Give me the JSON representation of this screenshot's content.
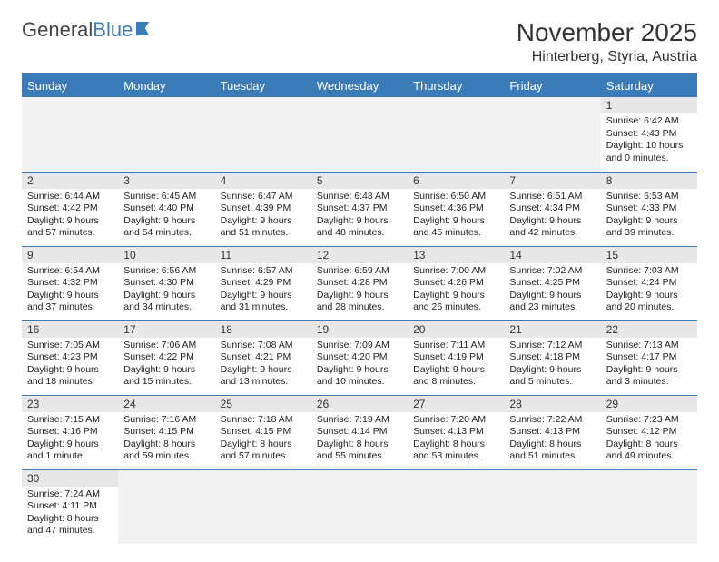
{
  "logo": {
    "part1": "General",
    "part2": "Blue"
  },
  "title": "November 2025",
  "location": "Hinterberg, Styria, Austria",
  "colors": {
    "accent": "#3a7bb8",
    "header_bg": "#3a7bb8",
    "daynum_bg": "#e8e8e8"
  },
  "day_headers": [
    "Sunday",
    "Monday",
    "Tuesday",
    "Wednesday",
    "Thursday",
    "Friday",
    "Saturday"
  ],
  "weeks": [
    [
      null,
      null,
      null,
      null,
      null,
      null,
      {
        "n": "1",
        "sunrise": "Sunrise: 6:42 AM",
        "sunset": "Sunset: 4:43 PM",
        "day1": "Daylight: 10 hours",
        "day2": "and 0 minutes."
      }
    ],
    [
      {
        "n": "2",
        "sunrise": "Sunrise: 6:44 AM",
        "sunset": "Sunset: 4:42 PM",
        "day1": "Daylight: 9 hours",
        "day2": "and 57 minutes."
      },
      {
        "n": "3",
        "sunrise": "Sunrise: 6:45 AM",
        "sunset": "Sunset: 4:40 PM",
        "day1": "Daylight: 9 hours",
        "day2": "and 54 minutes."
      },
      {
        "n": "4",
        "sunrise": "Sunrise: 6:47 AM",
        "sunset": "Sunset: 4:39 PM",
        "day1": "Daylight: 9 hours",
        "day2": "and 51 minutes."
      },
      {
        "n": "5",
        "sunrise": "Sunrise: 6:48 AM",
        "sunset": "Sunset: 4:37 PM",
        "day1": "Daylight: 9 hours",
        "day2": "and 48 minutes."
      },
      {
        "n": "6",
        "sunrise": "Sunrise: 6:50 AM",
        "sunset": "Sunset: 4:36 PM",
        "day1": "Daylight: 9 hours",
        "day2": "and 45 minutes."
      },
      {
        "n": "7",
        "sunrise": "Sunrise: 6:51 AM",
        "sunset": "Sunset: 4:34 PM",
        "day1": "Daylight: 9 hours",
        "day2": "and 42 minutes."
      },
      {
        "n": "8",
        "sunrise": "Sunrise: 6:53 AM",
        "sunset": "Sunset: 4:33 PM",
        "day1": "Daylight: 9 hours",
        "day2": "and 39 minutes."
      }
    ],
    [
      {
        "n": "9",
        "sunrise": "Sunrise: 6:54 AM",
        "sunset": "Sunset: 4:32 PM",
        "day1": "Daylight: 9 hours",
        "day2": "and 37 minutes."
      },
      {
        "n": "10",
        "sunrise": "Sunrise: 6:56 AM",
        "sunset": "Sunset: 4:30 PM",
        "day1": "Daylight: 9 hours",
        "day2": "and 34 minutes."
      },
      {
        "n": "11",
        "sunrise": "Sunrise: 6:57 AM",
        "sunset": "Sunset: 4:29 PM",
        "day1": "Daylight: 9 hours",
        "day2": "and 31 minutes."
      },
      {
        "n": "12",
        "sunrise": "Sunrise: 6:59 AM",
        "sunset": "Sunset: 4:28 PM",
        "day1": "Daylight: 9 hours",
        "day2": "and 28 minutes."
      },
      {
        "n": "13",
        "sunrise": "Sunrise: 7:00 AM",
        "sunset": "Sunset: 4:26 PM",
        "day1": "Daylight: 9 hours",
        "day2": "and 26 minutes."
      },
      {
        "n": "14",
        "sunrise": "Sunrise: 7:02 AM",
        "sunset": "Sunset: 4:25 PM",
        "day1": "Daylight: 9 hours",
        "day2": "and 23 minutes."
      },
      {
        "n": "15",
        "sunrise": "Sunrise: 7:03 AM",
        "sunset": "Sunset: 4:24 PM",
        "day1": "Daylight: 9 hours",
        "day2": "and 20 minutes."
      }
    ],
    [
      {
        "n": "16",
        "sunrise": "Sunrise: 7:05 AM",
        "sunset": "Sunset: 4:23 PM",
        "day1": "Daylight: 9 hours",
        "day2": "and 18 minutes."
      },
      {
        "n": "17",
        "sunrise": "Sunrise: 7:06 AM",
        "sunset": "Sunset: 4:22 PM",
        "day1": "Daylight: 9 hours",
        "day2": "and 15 minutes."
      },
      {
        "n": "18",
        "sunrise": "Sunrise: 7:08 AM",
        "sunset": "Sunset: 4:21 PM",
        "day1": "Daylight: 9 hours",
        "day2": "and 13 minutes."
      },
      {
        "n": "19",
        "sunrise": "Sunrise: 7:09 AM",
        "sunset": "Sunset: 4:20 PM",
        "day1": "Daylight: 9 hours",
        "day2": "and 10 minutes."
      },
      {
        "n": "20",
        "sunrise": "Sunrise: 7:11 AM",
        "sunset": "Sunset: 4:19 PM",
        "day1": "Daylight: 9 hours",
        "day2": "and 8 minutes."
      },
      {
        "n": "21",
        "sunrise": "Sunrise: 7:12 AM",
        "sunset": "Sunset: 4:18 PM",
        "day1": "Daylight: 9 hours",
        "day2": "and 5 minutes."
      },
      {
        "n": "22",
        "sunrise": "Sunrise: 7:13 AM",
        "sunset": "Sunset: 4:17 PM",
        "day1": "Daylight: 9 hours",
        "day2": "and 3 minutes."
      }
    ],
    [
      {
        "n": "23",
        "sunrise": "Sunrise: 7:15 AM",
        "sunset": "Sunset: 4:16 PM",
        "day1": "Daylight: 9 hours",
        "day2": "and 1 minute."
      },
      {
        "n": "24",
        "sunrise": "Sunrise: 7:16 AM",
        "sunset": "Sunset: 4:15 PM",
        "day1": "Daylight: 8 hours",
        "day2": "and 59 minutes."
      },
      {
        "n": "25",
        "sunrise": "Sunrise: 7:18 AM",
        "sunset": "Sunset: 4:15 PM",
        "day1": "Daylight: 8 hours",
        "day2": "and 57 minutes."
      },
      {
        "n": "26",
        "sunrise": "Sunrise: 7:19 AM",
        "sunset": "Sunset: 4:14 PM",
        "day1": "Daylight: 8 hours",
        "day2": "and 55 minutes."
      },
      {
        "n": "27",
        "sunrise": "Sunrise: 7:20 AM",
        "sunset": "Sunset: 4:13 PM",
        "day1": "Daylight: 8 hours",
        "day2": "and 53 minutes."
      },
      {
        "n": "28",
        "sunrise": "Sunrise: 7:22 AM",
        "sunset": "Sunset: 4:13 PM",
        "day1": "Daylight: 8 hours",
        "day2": "and 51 minutes."
      },
      {
        "n": "29",
        "sunrise": "Sunrise: 7:23 AM",
        "sunset": "Sunset: 4:12 PM",
        "day1": "Daylight: 8 hours",
        "day2": "and 49 minutes."
      }
    ],
    [
      {
        "n": "30",
        "sunrise": "Sunrise: 7:24 AM",
        "sunset": "Sunset: 4:11 PM",
        "day1": "Daylight: 8 hours",
        "day2": "and 47 minutes."
      },
      null,
      null,
      null,
      null,
      null,
      null
    ]
  ]
}
